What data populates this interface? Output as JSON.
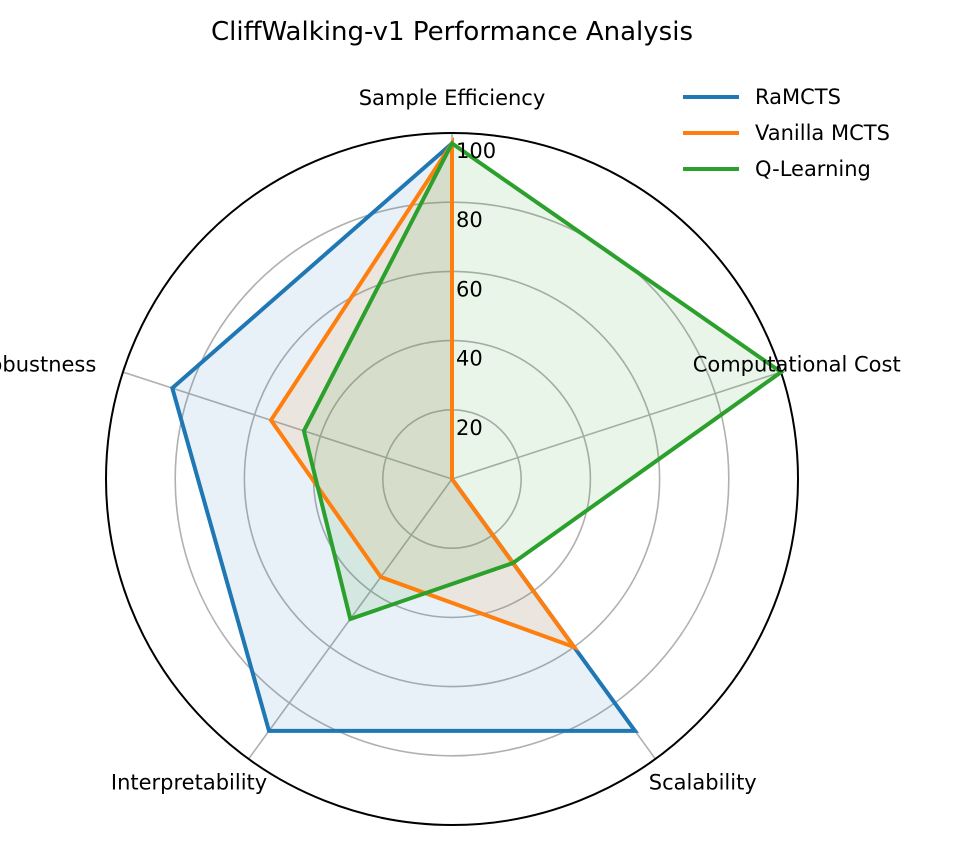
{
  "chart_data": {
    "type": "radar",
    "title": "CliffWalking-v1 Performance Analysis",
    "axes": [
      "Sample Efficiency",
      "Computational Cost",
      "Scalability",
      "Interpretability",
      "Robustness"
    ],
    "rlim": [
      0,
      100
    ],
    "r_ticks": [
      "20",
      "40",
      "60",
      "80",
      "100"
    ],
    "r_tick_values": [
      20,
      40,
      60,
      80,
      100
    ],
    "grid": true,
    "legend_position": "top-right",
    "series": [
      {
        "name": "RaMCTS",
        "color": "#1f77b4",
        "values": [
          97,
          0,
          90,
          90,
          85
        ]
      },
      {
        "name": "Vanilla MCTS",
        "color": "#ff7f0e",
        "values": [
          97,
          0,
          60,
          35,
          55
        ]
      },
      {
        "name": "Q-Learning",
        "color": "#2ca02c",
        "values": [
          97,
          100,
          30,
          50,
          45
        ]
      }
    ]
  }
}
